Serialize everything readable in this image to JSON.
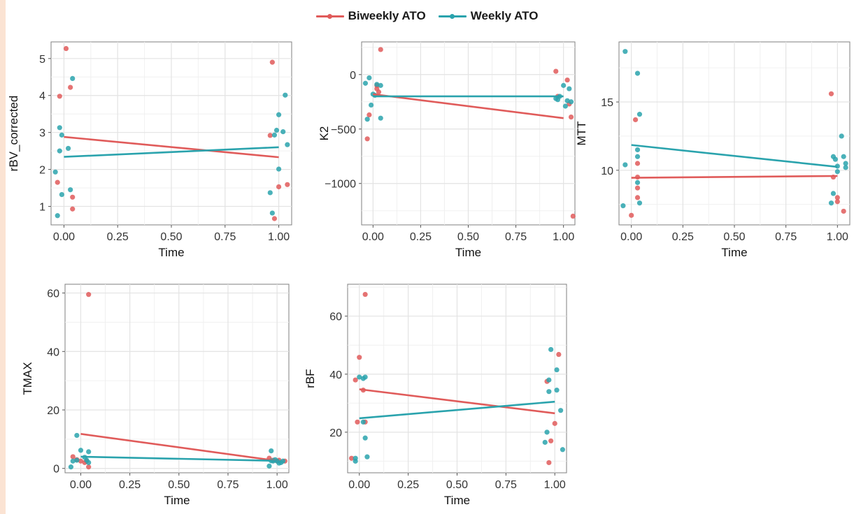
{
  "legend": {
    "items": [
      {
        "label": "Biweekly ATO",
        "color": "#e05b5a"
      },
      {
        "label": "Weekly ATO",
        "color": "#2aa3ad"
      }
    ]
  },
  "chart_data": [
    {
      "type": "scatter",
      "xlabel": "Time",
      "ylabel": "rBV_corrected",
      "xlim": [
        -0.06,
        1.06
      ],
      "ylim": [
        0.5,
        5.45
      ],
      "xticks": [
        0,
        0.25,
        0.5,
        0.75,
        1
      ],
      "xtick_labels": [
        "0.00",
        "0.25",
        "0.50",
        "0.75",
        "1.00"
      ],
      "yticks": [
        1,
        2,
        3,
        4,
        5
      ],
      "ytick_labels": [
        "1",
        "2",
        "3",
        "4",
        "5"
      ],
      "grid": true,
      "series": [
        {
          "name": "Biweekly ATO",
          "color": "#e05b5a",
          "points": [
            [
              -0.03,
              1.65
            ],
            [
              -0.02,
              3.98
            ],
            [
              0.01,
              5.27
            ],
            [
              0.03,
              4.22
            ],
            [
              0.04,
              1.25
            ],
            [
              0.04,
              0.93
            ],
            [
              0.96,
              2.92
            ],
            [
              0.97,
              4.9
            ],
            [
              0.98,
              0.67
            ],
            [
              1.0,
              1.53
            ],
            [
              1.04,
              1.59
            ]
          ],
          "fit": [
            [
              0,
              2.88
            ],
            [
              1,
              2.33
            ]
          ]
        },
        {
          "name": "Weekly ATO",
          "color": "#2aa3ad",
          "points": [
            [
              -0.04,
              1.93
            ],
            [
              -0.03,
              0.75
            ],
            [
              -0.02,
              2.5
            ],
            [
              -0.02,
              3.13
            ],
            [
              -0.01,
              2.93
            ],
            [
              -0.01,
              1.32
            ],
            [
              0.02,
              2.57
            ],
            [
              0.03,
              1.45
            ],
            [
              0.04,
              4.46
            ],
            [
              0.96,
              1.37
            ],
            [
              0.97,
              0.82
            ],
            [
              0.98,
              2.93
            ],
            [
              0.99,
              3.06
            ],
            [
              1.0,
              2.01
            ],
            [
              1.0,
              3.48
            ],
            [
              1.02,
              3.02
            ],
            [
              1.03,
              4.01
            ],
            [
              1.04,
              2.67
            ]
          ],
          "fit": [
            [
              0,
              2.34
            ],
            [
              1,
              2.6
            ]
          ]
        }
      ]
    },
    {
      "type": "scatter",
      "xlabel": "Time",
      "ylabel": "K2",
      "xlim": [
        -0.06,
        1.06
      ],
      "ylim": [
        -1380,
        300
      ],
      "xticks": [
        0,
        0.25,
        0.5,
        0.75,
        1
      ],
      "xtick_labels": [
        "0.00",
        "0.25",
        "0.50",
        "0.75",
        "1.00"
      ],
      "yticks": [
        -1000,
        -500,
        0
      ],
      "ytick_labels": [
        "−1000",
        "−500",
        "0"
      ],
      "grid": true,
      "series": [
        {
          "name": "Biweekly ATO",
          "color": "#e05b5a",
          "points": [
            [
              -0.03,
              -590
            ],
            [
              -0.02,
              -370
            ],
            [
              0.02,
              -100
            ],
            [
              0.02,
              -130
            ],
            [
              0.03,
              -160
            ],
            [
              0.04,
              230
            ],
            [
              0.96,
              30
            ],
            [
              0.97,
              -200
            ],
            [
              1.02,
              -50
            ],
            [
              1.03,
              -270
            ],
            [
              1.04,
              -390
            ],
            [
              1.05,
              -1300
            ]
          ],
          "fit": [
            [
              0,
              -180
            ],
            [
              1,
              -400
            ]
          ]
        },
        {
          "name": "Weekly ATO",
          "color": "#2aa3ad",
          "points": [
            [
              -0.04,
              -80
            ],
            [
              -0.03,
              -410
            ],
            [
              -0.02,
              -30
            ],
            [
              -0.01,
              -280
            ],
            [
              0.0,
              -180
            ],
            [
              0.01,
              -190
            ],
            [
              0.02,
              -90
            ],
            [
              0.04,
              -100
            ],
            [
              0.04,
              -400
            ],
            [
              0.96,
              -220
            ],
            [
              0.97,
              -230
            ],
            [
              0.98,
              -200
            ],
            [
              1.0,
              -100
            ],
            [
              1.01,
              -290
            ],
            [
              1.02,
              -240
            ],
            [
              1.03,
              -130
            ],
            [
              1.04,
              -250
            ]
          ],
          "fit": [
            [
              0,
              -200
            ],
            [
              1,
              -200
            ]
          ]
        }
      ]
    },
    {
      "type": "scatter",
      "xlabel": "Time",
      "ylabel": "MTT",
      "xlim": [
        -0.06,
        1.06
      ],
      "ylim": [
        6.0,
        19.4
      ],
      "xticks": [
        0,
        0.25,
        0.5,
        0.75,
        1
      ],
      "xtick_labels": [
        "0.00",
        "0.25",
        "0.50",
        "0.75",
        "1.00"
      ],
      "yticks": [
        10,
        15
      ],
      "ytick_labels": [
        "10",
        "15"
      ],
      "grid": true,
      "series": [
        {
          "name": "Biweekly ATO",
          "color": "#e05b5a",
          "points": [
            [
              0.0,
              6.7
            ],
            [
              0.02,
              13.7
            ],
            [
              0.03,
              10.5
            ],
            [
              0.03,
              8.7
            ],
            [
              0.03,
              8.0
            ],
            [
              0.03,
              9.5
            ],
            [
              0.97,
              15.6
            ],
            [
              0.98,
              9.5
            ],
            [
              1.0,
              7.7
            ],
            [
              1.0,
              8.0
            ],
            [
              1.03,
              7.0
            ]
          ],
          "fit": [
            [
              0,
              9.45
            ],
            [
              1,
              9.58
            ]
          ]
        },
        {
          "name": "Weekly ATO",
          "color": "#2aa3ad",
          "points": [
            [
              -0.04,
              7.4
            ],
            [
              -0.03,
              18.7
            ],
            [
              -0.03,
              10.4
            ],
            [
              0.03,
              17.1
            ],
            [
              0.03,
              11.5
            ],
            [
              0.03,
              11.0
            ],
            [
              0.03,
              9.1
            ],
            [
              0.04,
              7.6
            ],
            [
              0.04,
              14.1
            ],
            [
              0.97,
              7.6
            ],
            [
              0.98,
              8.3
            ],
            [
              0.98,
              11.0
            ],
            [
              0.99,
              10.8
            ],
            [
              1.0,
              9.9
            ],
            [
              1.0,
              10.3
            ],
            [
              1.02,
              12.5
            ],
            [
              1.03,
              11.0
            ],
            [
              1.04,
              10.2
            ],
            [
              1.04,
              10.5
            ]
          ],
          "fit": [
            [
              0,
              11.85
            ],
            [
              1,
              10.25
            ]
          ]
        }
      ]
    },
    {
      "type": "scatter",
      "xlabel": "Time",
      "ylabel": "TMAX",
      "xlim": [
        -0.08,
        1.06
      ],
      "ylim": [
        -1.5,
        63
      ],
      "xticks": [
        0,
        0.25,
        0.5,
        0.75,
        1
      ],
      "xtick_labels": [
        "0.00",
        "0.25",
        "0.50",
        "0.75",
        "1.00"
      ],
      "yticks": [
        0,
        20,
        40,
        60
      ],
      "ytick_labels": [
        "0",
        "20",
        "40",
        "60"
      ],
      "grid": true,
      "series": [
        {
          "name": "Biweekly ATO",
          "color": "#e05b5a",
          "points": [
            [
              -0.04,
              4
            ],
            [
              -0.02,
              3
            ],
            [
              0.0,
              2.5
            ],
            [
              0.02,
              2
            ],
            [
              0.03,
              2.5
            ],
            [
              0.04,
              0.5
            ],
            [
              0.04,
              59.5
            ],
            [
              0.96,
              3.5
            ],
            [
              0.98,
              2.8
            ],
            [
              1.0,
              2.5
            ],
            [
              1.01,
              2.8
            ],
            [
              1.04,
              2.5
            ]
          ],
          "fit": [
            [
              0,
              11.8
            ],
            [
              1,
              2.6
            ]
          ]
        },
        {
          "name": "Weekly ATO",
          "color": "#2aa3ad",
          "points": [
            [
              -0.05,
              0.5
            ],
            [
              -0.04,
              2.5
            ],
            [
              -0.02,
              2.8
            ],
            [
              -0.02,
              11.3
            ],
            [
              0.0,
              6.2
            ],
            [
              0.02,
              3.8
            ],
            [
              0.03,
              2.8
            ],
            [
              0.04,
              2.0
            ],
            [
              0.04,
              5.7
            ],
            [
              0.96,
              0.8
            ],
            [
              0.97,
              2.6
            ],
            [
              0.97,
              6.0
            ],
            [
              0.98,
              2.5
            ],
            [
              0.99,
              3.0
            ],
            [
              1.0,
              2.5
            ],
            [
              1.01,
              1.8
            ],
            [
              1.02,
              2.0
            ],
            [
              1.03,
              2.5
            ]
          ],
          "fit": [
            [
              0,
              4.0
            ],
            [
              1,
              2.6
            ]
          ]
        }
      ]
    },
    {
      "type": "scatter",
      "xlabel": "Time",
      "ylabel": "rBF",
      "xlim": [
        -0.06,
        1.06
      ],
      "ylim": [
        6,
        71
      ],
      "xticks": [
        0,
        0.25,
        0.5,
        0.75,
        1
      ],
      "xtick_labels": [
        "0.00",
        "0.25",
        "0.50",
        "0.75",
        "1.00"
      ],
      "yticks": [
        20,
        40,
        60
      ],
      "ytick_labels": [
        "20",
        "40",
        "60"
      ],
      "grid": true,
      "series": [
        {
          "name": "Biweekly ATO",
          "color": "#e05b5a",
          "points": [
            [
              -0.04,
              11
            ],
            [
              -0.02,
              38
            ],
            [
              -0.01,
              23.5
            ],
            [
              0.0,
              45.8
            ],
            [
              0.02,
              34.5
            ],
            [
              0.03,
              23.5
            ],
            [
              0.03,
              67.5
            ],
            [
              0.96,
              37.5
            ],
            [
              0.97,
              9.5
            ],
            [
              0.98,
              17
            ],
            [
              1.0,
              23
            ],
            [
              1.02,
              46.8
            ]
          ],
          "fit": [
            [
              0,
              34.8
            ],
            [
              1,
              26.5
            ]
          ]
        },
        {
          "name": "Weekly ATO",
          "color": "#2aa3ad",
          "points": [
            [
              -0.02,
              10
            ],
            [
              -0.02,
              11
            ],
            [
              0.0,
              39
            ],
            [
              0.02,
              38.5
            ],
            [
              0.02,
              23.5
            ],
            [
              0.03,
              39
            ],
            [
              0.03,
              18
            ],
            [
              0.04,
              11.5
            ],
            [
              0.95,
              16.5
            ],
            [
              0.96,
              20
            ],
            [
              0.97,
              34
            ],
            [
              0.97,
              38
            ],
            [
              0.98,
              48.5
            ],
            [
              1.01,
              41.5
            ],
            [
              1.01,
              34.5
            ],
            [
              1.03,
              27.5
            ],
            [
              1.04,
              14
            ]
          ],
          "fit": [
            [
              0,
              24.8
            ],
            [
              1,
              30.5
            ]
          ]
        }
      ]
    }
  ]
}
